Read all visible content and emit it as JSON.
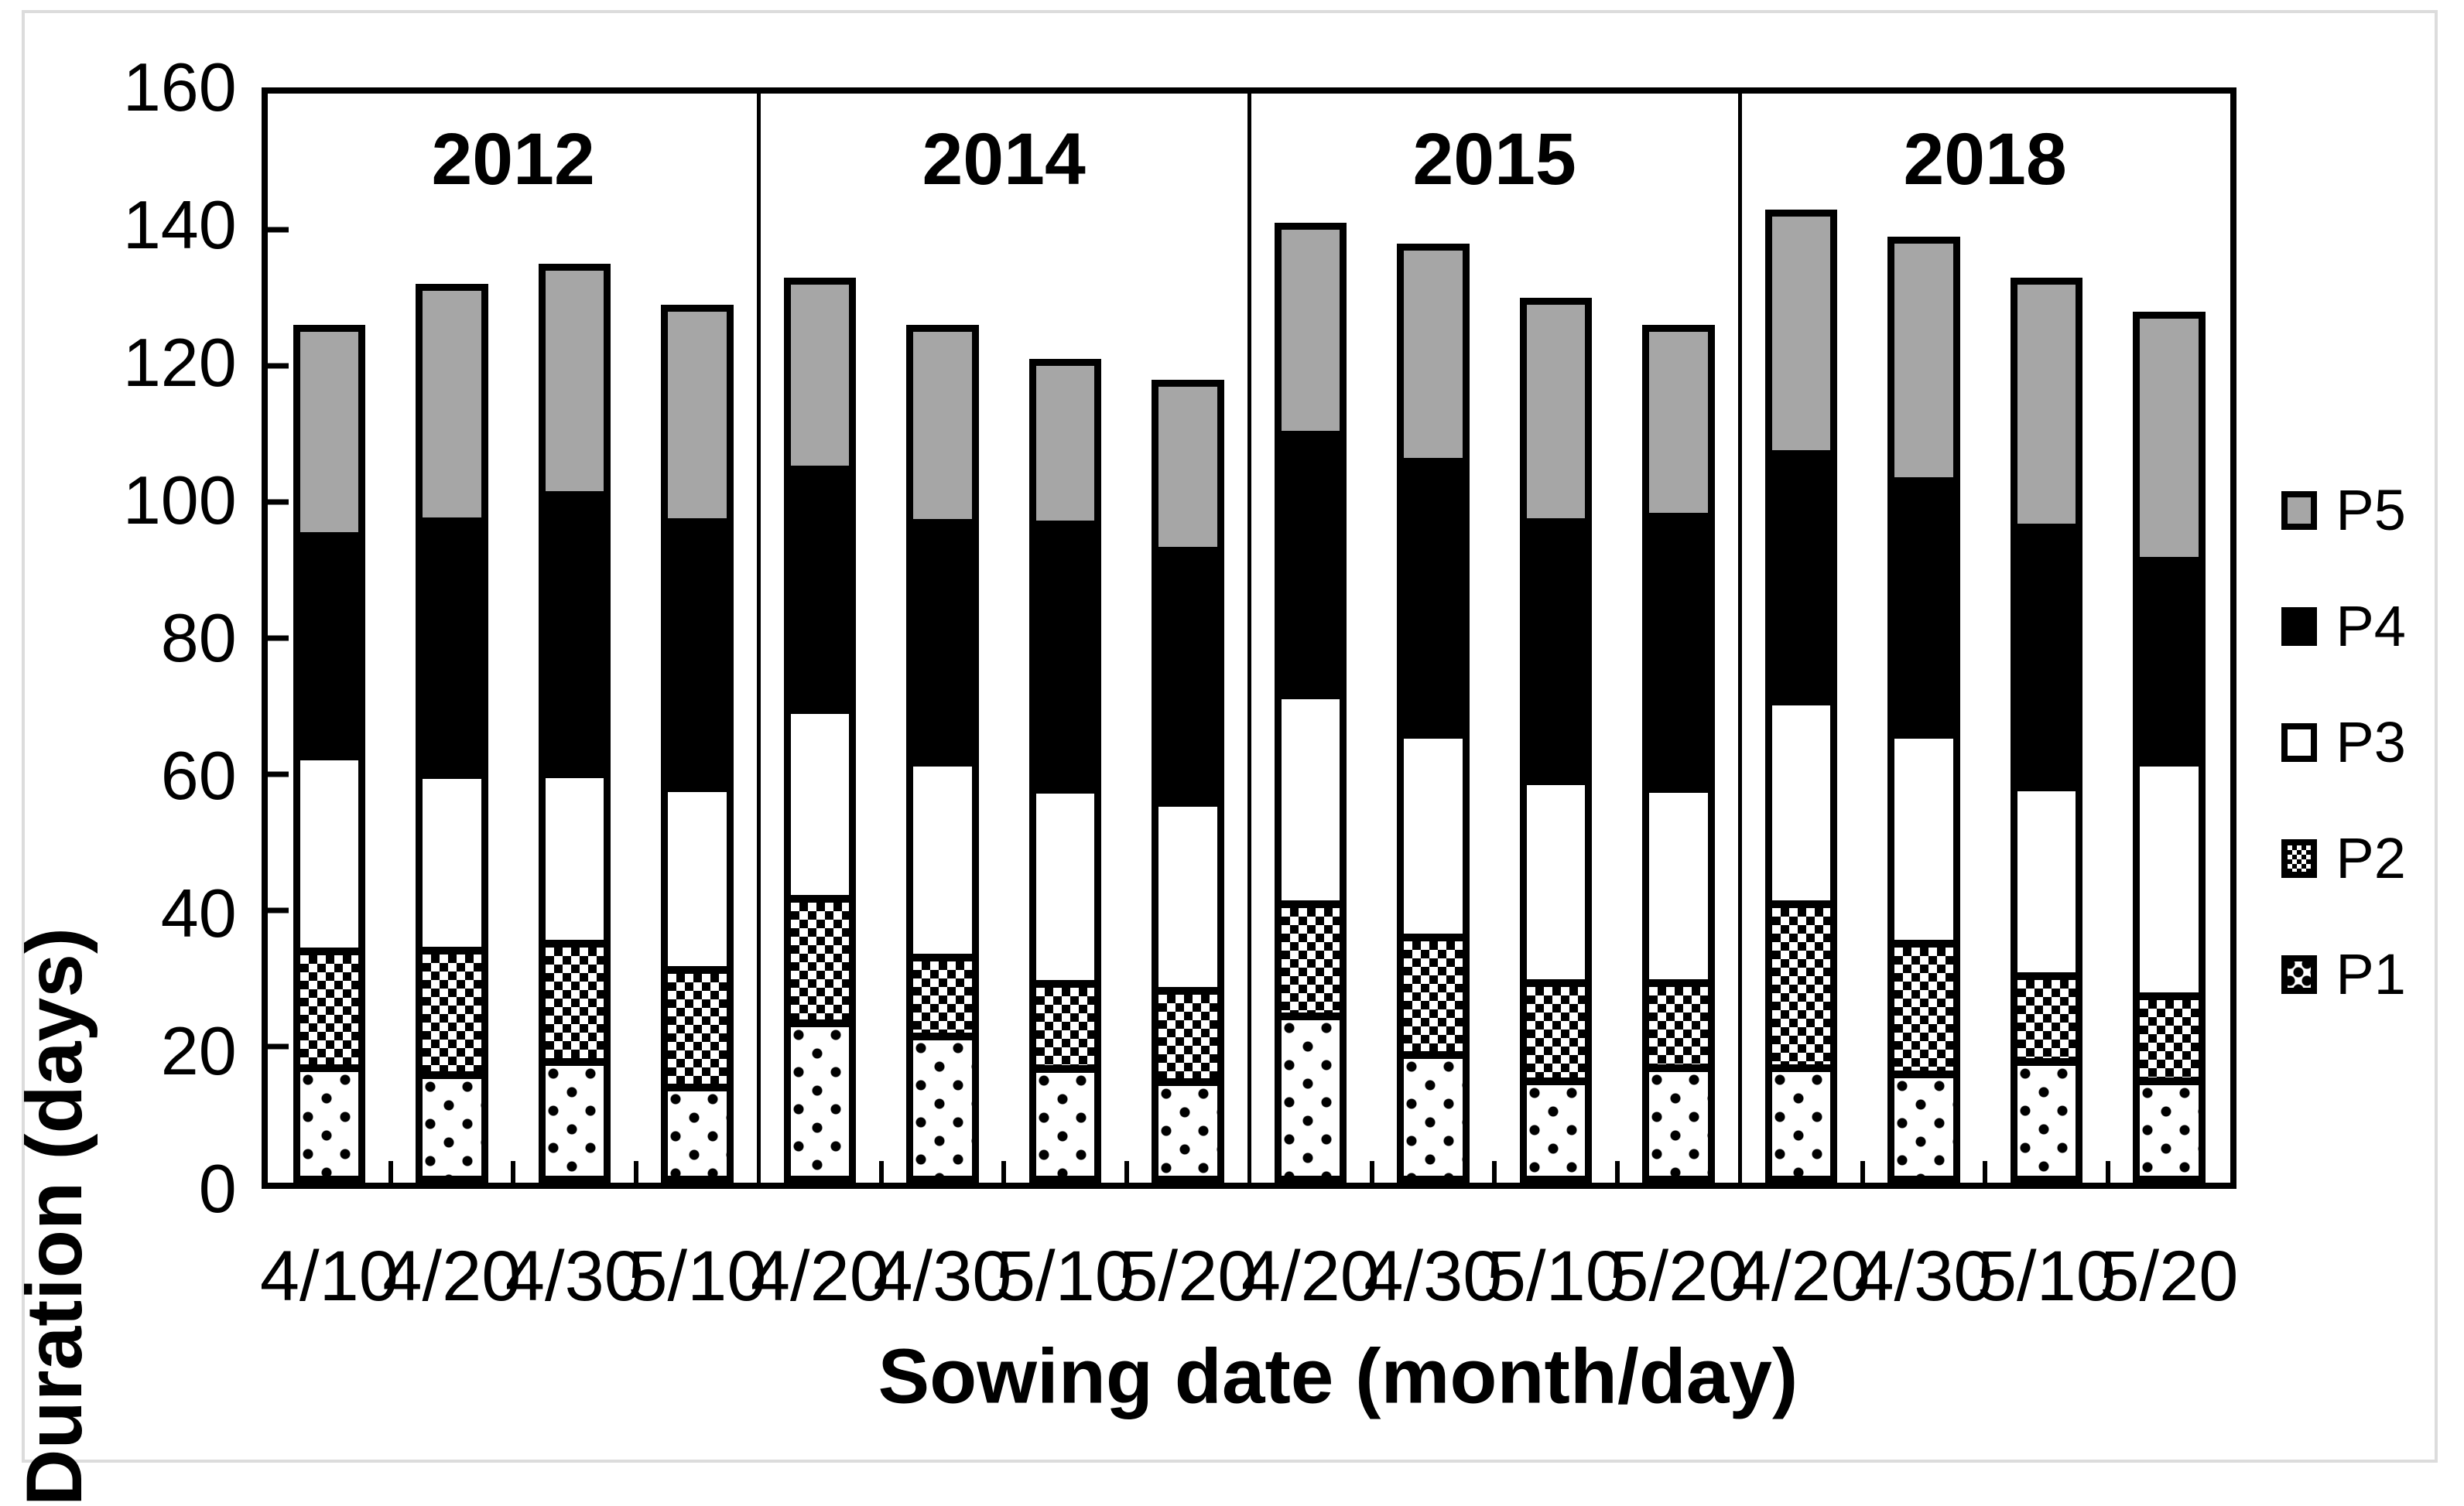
{
  "chart_data": {
    "type": "bar",
    "stacked": true,
    "ylabel": "Duration (days)",
    "xlabel": "Sowing date (month/day)",
    "ylim": [
      0,
      160
    ],
    "yticks": [
      0,
      20,
      40,
      60,
      80,
      100,
      120,
      140,
      160
    ],
    "grid": false,
    "legend_position": "right",
    "series_order_bottom_to_top": [
      "P1",
      "P2",
      "P3",
      "P4",
      "P5"
    ],
    "groups": [
      {
        "year": "2012",
        "categories": [
          "4/10",
          "4/20",
          "4/30",
          "5/10"
        ],
        "series": [
          {
            "name": "P1",
            "values": [
              16,
              15,
              17,
              13
            ]
          },
          {
            "name": "P2",
            "values": [
              17,
              18,
              17,
              17
            ]
          },
          {
            "name": "P3",
            "values": [
              29,
              26,
              25,
              27
            ]
          },
          {
            "name": "P4",
            "values": [
              33,
              38,
              42,
              40
            ]
          },
          {
            "name": "P5",
            "values": [
              31,
              35,
              34,
              32
            ]
          }
        ],
        "totals": [
          126,
          132,
          135,
          129
        ]
      },
      {
        "year": "2014",
        "categories": [
          "4/20",
          "4/30",
          "5/10",
          "5/20"
        ],
        "series": [
          {
            "name": "P1",
            "values": [
              23,
              21,
              16,
              14
            ]
          },
          {
            "name": "P2",
            "values": [
              18,
              11,
              12,
              13
            ]
          },
          {
            "name": "P3",
            "values": [
              28,
              29,
              29,
              28
            ]
          },
          {
            "name": "P4",
            "values": [
              36,
              36,
              40,
              38
            ]
          },
          {
            "name": "P5",
            "values": [
              28,
              29,
              24,
              25
            ]
          }
        ],
        "totals": [
          133,
          126,
          121,
          118
        ]
      },
      {
        "year": "2015",
        "categories": [
          "4/20",
          "4/30",
          "5/10",
          "5/20"
        ],
        "series": [
          {
            "name": "P1",
            "values": [
              24,
              18,
              14,
              16
            ]
          },
          {
            "name": "P2",
            "values": [
              16,
              17,
              14,
              12
            ]
          },
          {
            "name": "P3",
            "values": [
              31,
              30,
              30,
              29
            ]
          },
          {
            "name": "P4",
            "values": [
              39,
              41,
              39,
              41
            ]
          },
          {
            "name": "P5",
            "values": [
              31,
              32,
              33,
              28
            ]
          }
        ],
        "totals": [
          141,
          138,
          130,
          126
        ]
      },
      {
        "year": "2018",
        "categories": [
          "4/20",
          "4/30",
          "5/10",
          "5/20"
        ],
        "series": [
          {
            "name": "P1",
            "values": [
              16,
              15,
              17,
              14
            ]
          },
          {
            "name": "P2",
            "values": [
              24,
              19,
              12,
              12
            ]
          },
          {
            "name": "P3",
            "values": [
              30,
              31,
              28,
              35
            ]
          },
          {
            "name": "P4",
            "values": [
              37,
              38,
              39,
              30
            ]
          },
          {
            "name": "P5",
            "values": [
              36,
              36,
              37,
              37
            ]
          }
        ],
        "totals": [
          143,
          139,
          133,
          128
        ]
      }
    ],
    "legend": [
      {
        "label": "P5",
        "fill": "p5",
        "style": "solid gray"
      },
      {
        "label": "P4",
        "fill": "p4",
        "style": "solid black"
      },
      {
        "label": "P3",
        "fill": "p3",
        "style": "white"
      },
      {
        "label": "P2",
        "fill": "p2",
        "style": "checker pattern"
      },
      {
        "label": "P1",
        "fill": "p1",
        "style": "sparse dot pattern"
      }
    ]
  },
  "colors": {
    "p5_gray": "#a6a6a6",
    "axis_black": "#000000",
    "frame_gray": "#dcdcdc",
    "background": "#ffffff"
  }
}
